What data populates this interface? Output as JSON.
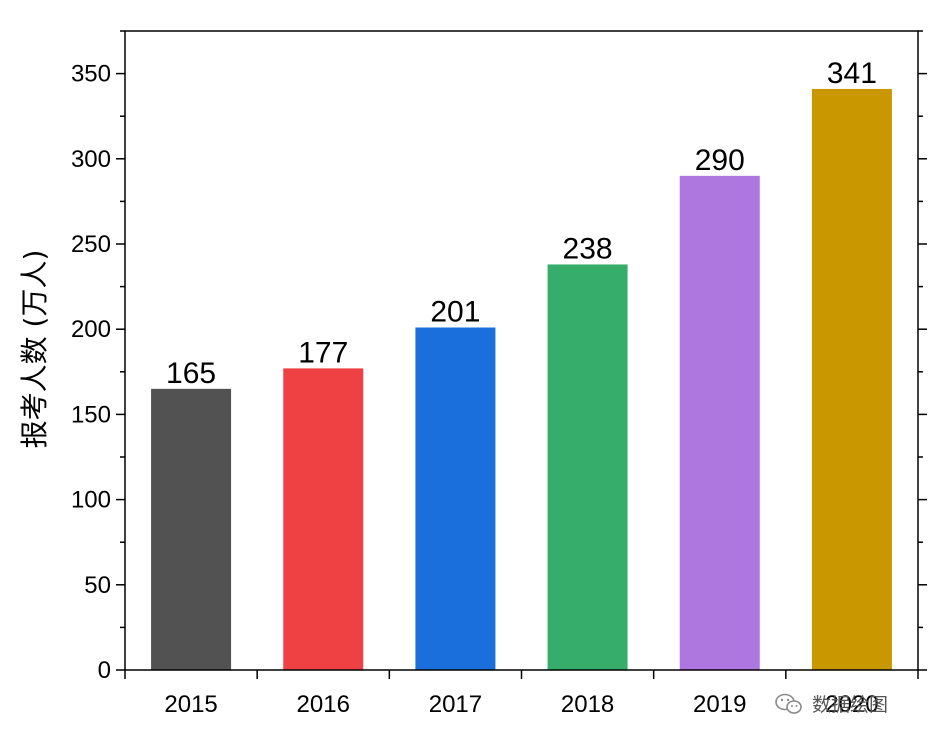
{
  "chart_data": {
    "type": "bar",
    "title": "",
    "xlabel": "",
    "ylabel": "报考人数 (万人)",
    "categories": [
      "2015",
      "2016",
      "2017",
      "2018",
      "2019",
      "2020"
    ],
    "values": [
      165,
      177,
      201,
      238,
      290,
      341
    ],
    "colors": [
      "#525252",
      "#ef4143",
      "#1a6fdc",
      "#36ad6a",
      "#ad77df",
      "#c99800"
    ],
    "ylim": [
      0,
      375
    ],
    "yticks": [
      0,
      50,
      100,
      150,
      200,
      250,
      300,
      350
    ],
    "grid": false,
    "legend": "none"
  },
  "watermark": {
    "text": "数据绘图",
    "icon": "wechat-icon"
  }
}
